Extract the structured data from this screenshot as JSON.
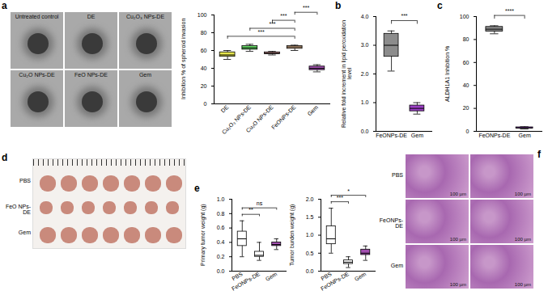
{
  "image_panels": [
    {
      "panel": "a",
      "labels": [
        "Untreated control",
        "DE",
        "Cu₂O₃ NPs-DE",
        "Cu₂O NPs-DE",
        "FeO NPs-DE",
        "Gem"
      ]
    },
    {
      "panel": "d",
      "labels": [
        "PBS",
        "FeO NPs-DE",
        "Gem"
      ]
    },
    {
      "panel": "f",
      "labels": [
        "PBS",
        "FeONPs-DE",
        "Gem"
      ],
      "scale_bar": "100 µm"
    }
  ],
  "chart_data": [
    {
      "panel": "a",
      "type": "box",
      "y_label": "Inhibition % of spheroid invasion",
      "categories": [
        "DE",
        "Cu₂O₃ NPs-DE",
        "Cu₂O NPs-DE",
        "FeONPs-DE",
        "Gem"
      ],
      "colors": [
        "#e6e64c",
        "#66dd66",
        "#f4a3a3",
        "#f6c89c",
        "#a24fb0"
      ],
      "boxes": [
        {
          "min": 50,
          "q1": 53,
          "median": 55,
          "q3": 58,
          "max": 60
        },
        {
          "min": 59,
          "q1": 61,
          "median": 63,
          "q3": 65,
          "max": 67
        },
        {
          "min": 55,
          "q1": 56,
          "median": 57,
          "q3": 58,
          "max": 59
        },
        {
          "min": 60,
          "q1": 62,
          "median": 64,
          "q3": 65,
          "max": 66
        },
        {
          "min": 36,
          "q1": 38,
          "median": 40,
          "q3": 42,
          "max": 44
        }
      ],
      "ylim": [
        0,
        100
      ],
      "yticks": [
        0,
        20,
        40,
        60,
        80,
        100
      ],
      "annotations": [
        {
          "pair": [
            0,
            3
          ],
          "text": "***"
        },
        {
          "pair": [
            1,
            3
          ],
          "text": "***"
        },
        {
          "pair": [
            2,
            3
          ],
          "text": "***"
        },
        {
          "pair": [
            3,
            4
          ],
          "text": "***"
        }
      ]
    },
    {
      "panel": "b",
      "type": "box",
      "y_label": "Relative fold increment in lipid peroxidation level",
      "categories": [
        "FeONPs-DE",
        "Gem"
      ],
      "colors": [
        "#8c8c8c",
        "#9b3fc4"
      ],
      "boxes": [
        {
          "min": 2.1,
          "q1": 2.6,
          "median": 3.0,
          "q3": 3.4,
          "max": 3.5
        },
        {
          "min": 0.6,
          "q1": 0.7,
          "median": 0.8,
          "q3": 0.9,
          "max": 1.0
        }
      ],
      "ylim": [
        0,
        4
      ],
      "yticks": [
        0,
        1,
        2,
        3,
        4
      ],
      "annotations": [
        {
          "pair": [
            0,
            1
          ],
          "text": "***"
        }
      ]
    },
    {
      "panel": "c",
      "type": "box",
      "y_label": "ALDH1A1 Inhibition %",
      "categories": [
        "FeONPs-DE",
        "Gem"
      ],
      "colors": [
        "#8c8c8c",
        "#9b3fc4"
      ],
      "boxes": [
        {
          "min": 85,
          "q1": 87,
          "median": 89,
          "q3": 91,
          "max": 92
        },
        {
          "min": 2,
          "q1": 2.5,
          "median": 3,
          "q3": 3.5,
          "max": 4
        }
      ],
      "ylim": [
        0,
        100
      ],
      "yticks": [
        0,
        20,
        40,
        60,
        80,
        100
      ],
      "annotations": [
        {
          "pair": [
            0,
            1
          ],
          "text": "****"
        }
      ]
    },
    {
      "panel": "e",
      "type": "box",
      "y_label": "Primary tumor weight (g)",
      "categories": [
        "PBS",
        "FeONPs-DE",
        "Gem"
      ],
      "colors": [
        "#ffffff",
        "#ffffff",
        "#a24fb0"
      ],
      "boxes": [
        {
          "min": 0.2,
          "q1": 0.35,
          "median": 0.45,
          "q3": 0.55,
          "max": 0.7
        },
        {
          "min": 0.15,
          "q1": 0.2,
          "median": 0.22,
          "q3": 0.27,
          "max": 0.4
        },
        {
          "min": 0.3,
          "q1": 0.35,
          "median": 0.37,
          "q3": 0.4,
          "max": 0.45
        }
      ],
      "ylim": [
        0,
        1
      ],
      "yticks": [
        0,
        0.2,
        0.4,
        0.6,
        0.8,
        1
      ],
      "annotations": [
        {
          "pair": [
            0,
            1
          ],
          "text": "**"
        },
        {
          "pair": [
            0,
            2
          ],
          "text": "ns"
        }
      ]
    },
    {
      "panel": "e",
      "type": "box",
      "y_label": "Tumor burden weight (g)",
      "categories": [
        "PBS",
        "FeONPs-DE",
        "Gem"
      ],
      "colors": [
        "#ffffff",
        "#ffffff",
        "#a24fb0"
      ],
      "boxes": [
        {
          "min": 0.5,
          "q1": 0.75,
          "median": 0.9,
          "q3": 1.25,
          "max": 1.75
        },
        {
          "min": 0.1,
          "q1": 0.2,
          "median": 0.25,
          "q3": 0.3,
          "max": 0.4
        },
        {
          "min": 0.3,
          "q1": 0.45,
          "median": 0.5,
          "q3": 0.6,
          "max": 0.7
        }
      ],
      "ylim": [
        0,
        2
      ],
      "yticks": [
        0,
        0.5,
        1,
        1.5,
        2
      ],
      "annotations": [
        {
          "pair": [
            0,
            1
          ],
          "text": "***"
        },
        {
          "pair": [
            0,
            2
          ],
          "text": "*"
        }
      ]
    }
  ]
}
